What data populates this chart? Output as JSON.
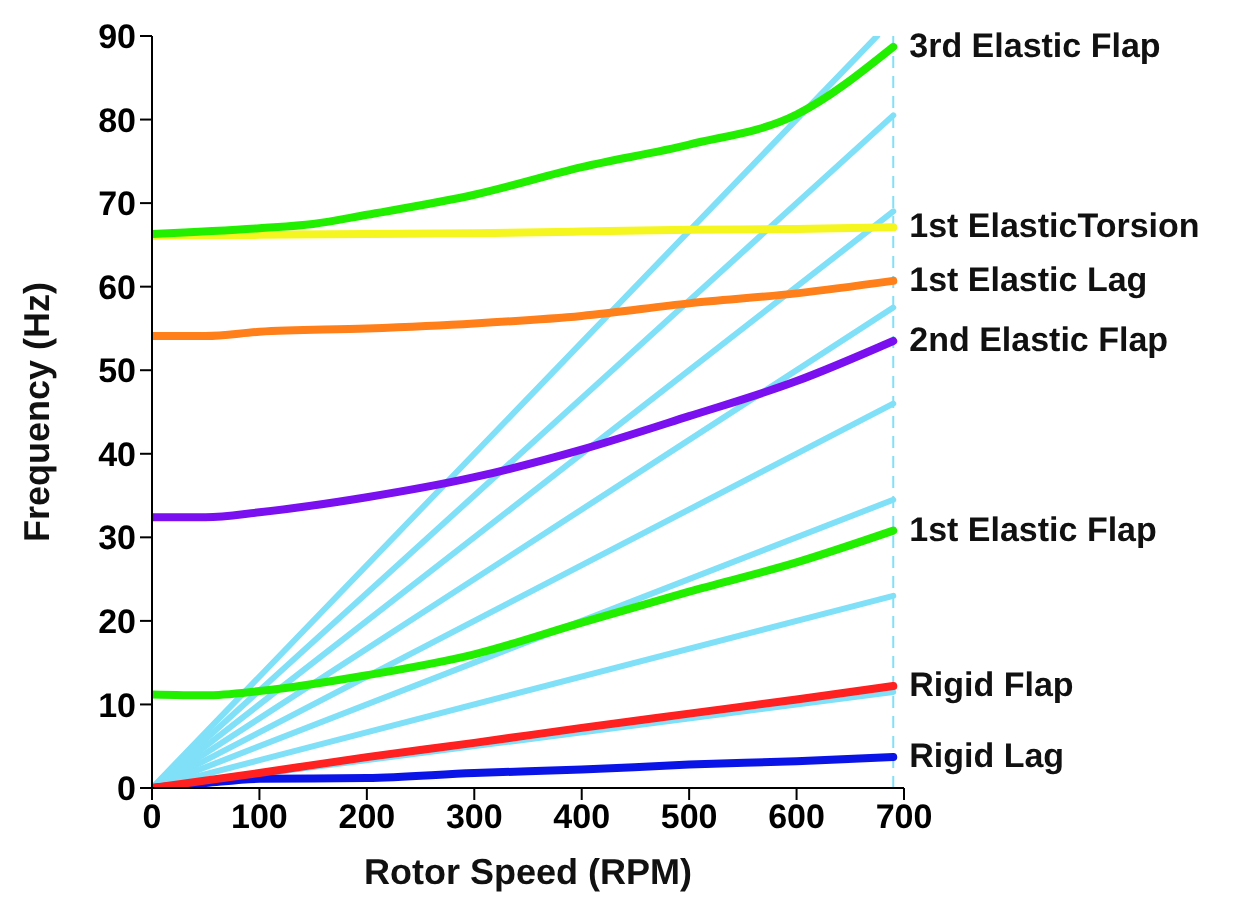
{
  "chart_data": {
    "type": "line",
    "xlabel": "Rotor Speed (RPM)",
    "ylabel": "Frequency (Hz)",
    "xlim": [
      0,
      700
    ],
    "ylim": [
      0,
      90
    ],
    "xticks": [
      0,
      100,
      200,
      300,
      400,
      500,
      600,
      700
    ],
    "yticks": [
      0,
      10,
      20,
      30,
      40,
      50,
      60,
      70,
      80,
      90
    ],
    "grid": false,
    "legend": false,
    "marker": "none",
    "line_style": "solid",
    "ref_lines": [
      {
        "axis": "x",
        "value": 690,
        "color": "#80e0f8",
        "line_style": "dashed"
      }
    ],
    "series": [
      {
        "type": "line",
        "color": "#80e0f8",
        "x": [
          0,
          690
        ],
        "values": [
          0,
          11.5
        ]
      },
      {
        "type": "line",
        "color": "#80e0f8",
        "x": [
          0,
          690
        ],
        "values": [
          0,
          23
        ]
      },
      {
        "type": "line",
        "color": "#80e0f8",
        "x": [
          0,
          690
        ],
        "values": [
          0,
          34.5
        ]
      },
      {
        "type": "line",
        "color": "#80e0f8",
        "x": [
          0,
          690
        ],
        "values": [
          0,
          46
        ]
      },
      {
        "type": "line",
        "color": "#80e0f8",
        "x": [
          0,
          690
        ],
        "values": [
          0,
          57.5
        ]
      },
      {
        "type": "line",
        "color": "#80e0f8",
        "x": [
          0,
          690
        ],
        "values": [
          0,
          69
        ]
      },
      {
        "type": "line",
        "color": "#80e0f8",
        "x": [
          0,
          690
        ],
        "values": [
          0,
          80.5
        ]
      },
      {
        "type": "line",
        "color": "#80e0f8",
        "x": [
          0,
          675
        ],
        "values": [
          0,
          90
        ]
      },
      {
        "name": "Rigid Lag",
        "color": "#0a14e6",
        "x": [
          0,
          50,
          100,
          200,
          300,
          400,
          500,
          600,
          690
        ],
        "values": [
          0,
          0.6,
          1.1,
          1.2,
          1.8,
          2.2,
          2.8,
          3.2,
          3.7
        ]
      },
      {
        "name": "Rigid Flap",
        "color": "#ff2020",
        "x": [
          0,
          100,
          200,
          300,
          400,
          500,
          600,
          690
        ],
        "values": [
          0,
          1.8,
          3.7,
          5.4,
          7.2,
          8.9,
          10.6,
          12.2
        ]
      },
      {
        "name": "1st Elastic Flap",
        "color": "#22ee00",
        "x": [
          0,
          50,
          100,
          200,
          300,
          400,
          500,
          600,
          690
        ],
        "values": [
          11.2,
          11.1,
          11.6,
          13.5,
          16,
          19.8,
          23.5,
          27,
          30.8
        ]
      },
      {
        "name": "2nd Elastic Flap",
        "color": "#7a10f0",
        "x": [
          0,
          50,
          100,
          200,
          300,
          400,
          500,
          600,
          690
        ],
        "values": [
          32.4,
          32.4,
          33,
          34.8,
          37.2,
          40.5,
          44.5,
          48.7,
          53.5
        ]
      },
      {
        "name": "1st Elastic Lag",
        "color": "#ff7f1a",
        "x": [
          0,
          50,
          100,
          200,
          300,
          400,
          500,
          600,
          690
        ],
        "values": [
          54.1,
          54.1,
          54.6,
          55,
          55.6,
          56.5,
          58,
          59.2,
          60.7
        ]
      },
      {
        "name": "1st ElasticTorsion",
        "color": "#f5f520",
        "x": [
          0,
          200,
          300,
          400,
          500,
          600,
          690
        ],
        "values": [
          66.1,
          66.3,
          66.4,
          66.6,
          66.8,
          66.9,
          67.1
        ]
      },
      {
        "name": "3rd Elastic Flap",
        "color": "#22ee00",
        "x": [
          0,
          100,
          150,
          200,
          300,
          400,
          500,
          600,
          690
        ],
        "values": [
          66.3,
          67,
          67.5,
          68.6,
          71,
          74.3,
          77,
          80.6,
          88.7
        ]
      }
    ]
  }
}
